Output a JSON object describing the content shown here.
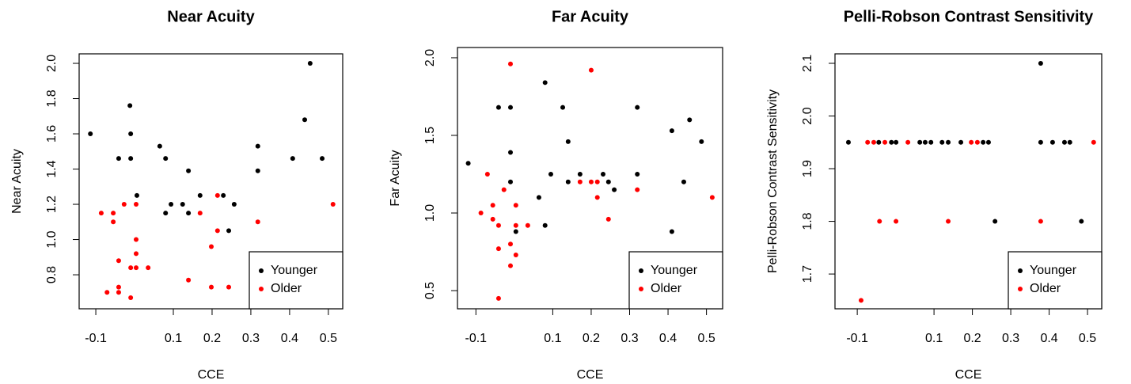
{
  "chart_data": [
    {
      "type": "scatter",
      "title": "Near Acuity",
      "x_label": "CCE",
      "y_label": "Near Acuity",
      "xlim": [
        -0.143,
        0.537
      ],
      "ylim": [
        0.607,
        2.054
      ],
      "xticks": [
        -0.1,
        0.1,
        0.2,
        0.3,
        0.4,
        0.5
      ],
      "yticks": [
        0.8,
        {
          "value": 1.0,
          "label": "1.0"
        },
        1.2,
        1.4,
        1.6,
        1.8,
        {
          "value": 2.0,
          "label": "2.0"
        }
      ],
      "legend": "bottomright",
      "series": [
        {
          "name": "Younger",
          "color": "#000000",
          "x": [
            -0.114,
            -0.041,
            -0.012,
            -0.01,
            -0.01,
            0.006,
            0.065,
            0.08,
            0.08,
            0.094,
            0.124,
            0.139,
            0.139,
            0.169,
            0.229,
            0.243,
            0.257,
            0.318,
            0.318,
            0.408,
            0.439,
            0.453,
            0.484
          ],
          "values": [
            1.6,
            1.46,
            1.76,
            1.6,
            1.46,
            1.25,
            1.53,
            1.46,
            1.15,
            1.2,
            1.2,
            1.39,
            1.15,
            1.25,
            1.25,
            1.05,
            1.2,
            1.53,
            1.39,
            1.46,
            1.68,
            2.0,
            1.46
          ]
        },
        {
          "name": "Older",
          "color": "#ff0000",
          "x": [
            -0.086,
            -0.055,
            -0.055,
            -0.027,
            0.004,
            -0.041,
            -0.041,
            -0.041,
            -0.071,
            -0.01,
            -0.01,
            0.004,
            0.004,
            0.004,
            0.035,
            0.139,
            0.169,
            0.198,
            0.198,
            0.214,
            0.214,
            0.243,
            0.318,
            0.512
          ],
          "values": [
            1.15,
            1.15,
            1.1,
            1.2,
            1.2,
            0.88,
            0.73,
            0.7,
            0.7,
            0.84,
            0.67,
            1.0,
            0.92,
            0.84,
            0.84,
            0.77,
            1.15,
            0.96,
            0.73,
            1.25,
            1.05,
            0.73,
            1.1,
            1.2
          ]
        }
      ]
    },
    {
      "type": "scatter",
      "title": "Far Acuity",
      "x_label": "CCE",
      "y_label": "Far Acuity",
      "xlim": [
        -0.148,
        0.542
      ],
      "ylim": [
        0.383,
        2.066
      ],
      "xticks": [
        -0.1,
        0.1,
        0.2,
        0.3,
        0.4,
        0.5
      ],
      "yticks": [
        0.5,
        {
          "value": 1.0,
          "label": "1.0"
        },
        1.5,
        {
          "value": 2.0,
          "label": "2.0"
        }
      ],
      "legend": "bottomright",
      "series": [
        {
          "name": "Younger",
          "color": "#000000",
          "x": [
            -0.12,
            -0.041,
            -0.01,
            -0.01,
            -0.01,
            0.004,
            0.064,
            0.08,
            0.08,
            0.095,
            0.126,
            0.14,
            0.14,
            0.171,
            0.231,
            0.245,
            0.26,
            0.32,
            0.32,
            0.41,
            0.441,
            0.456,
            0.487,
            0.41
          ],
          "values": [
            1.32,
            1.68,
            1.68,
            1.39,
            1.2,
            0.88,
            1.1,
            1.84,
            0.92,
            1.25,
            1.68,
            1.46,
            1.2,
            1.25,
            1.25,
            1.2,
            1.15,
            1.68,
            1.25,
            1.53,
            1.2,
            1.6,
            1.46,
            0.88
          ]
        },
        {
          "name": "Older",
          "color": "#ff0000",
          "x": [
            -0.087,
            -0.07,
            -0.056,
            -0.056,
            -0.041,
            -0.041,
            -0.041,
            -0.027,
            -0.01,
            -0.01,
            0.004,
            0.004,
            0.004,
            0.035,
            -0.01,
            0.171,
            0.2,
            0.216,
            0.216,
            0.2,
            0.245,
            0.32,
            0.515
          ],
          "values": [
            1.0,
            1.25,
            1.05,
            0.96,
            0.92,
            0.77,
            0.45,
            1.15,
            1.96,
            0.66,
            1.05,
            0.92,
            0.73,
            0.92,
            0.8,
            1.2,
            1.2,
            1.2,
            1.1,
            1.92,
            0.96,
            1.15,
            1.1
          ]
        }
      ]
    },
    {
      "type": "scatter",
      "title": "Pelli-Robson Contrast Sensitivity",
      "x_label": "CCE",
      "y_label": "Pelli-Robson Contrast Sensitivity",
      "xlim": [
        -0.158,
        0.537
      ],
      "ylim": [
        1.634,
        2.118
      ],
      "xticks": [
        -0.1,
        0.1,
        0.2,
        0.3,
        0.4,
        0.5
      ],
      "yticks": [
        1.7,
        1.8,
        1.9,
        {
          "value": 2.0,
          "label": "2.0"
        },
        2.1
      ],
      "legend": "bottomright",
      "series": [
        {
          "name": "Younger",
          "color": "#000000",
          "x": [
            -0.123,
            -0.044,
            -0.011,
            0.001,
            0.063,
            0.077,
            0.092,
            0.121,
            0.137,
            0.17,
            0.228,
            0.242,
            0.378,
            0.409,
            0.44,
            0.454,
            0.378,
            0.259,
            0.484
          ],
          "values": [
            1.95,
            1.95,
            1.95,
            1.95,
            1.95,
            1.95,
            1.95,
            1.95,
            1.95,
            1.95,
            1.95,
            1.95,
            1.95,
            1.95,
            1.95,
            1.95,
            2.1,
            1.8,
            1.8
          ]
        },
        {
          "name": "Older",
          "color": "#ff0000",
          "x": [
            -0.073,
            -0.057,
            -0.028,
            0.032,
            0.197,
            0.213,
            0.516,
            -0.042,
            0.001,
            0.137,
            0.378,
            -0.09
          ],
          "values": [
            1.95,
            1.95,
            1.95,
            1.95,
            1.95,
            1.95,
            1.95,
            1.8,
            1.8,
            1.8,
            1.8,
            1.65
          ]
        }
      ]
    }
  ]
}
